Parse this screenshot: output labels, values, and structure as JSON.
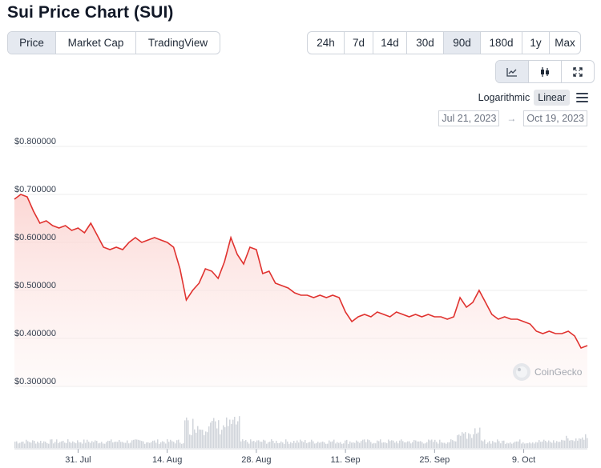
{
  "title": "Sui Price Chart (SUI)",
  "chart_type_tabs": [
    {
      "label": "Price",
      "active": true
    },
    {
      "label": "Market Cap",
      "active": false
    },
    {
      "label": "TradingView",
      "active": false
    }
  ],
  "range_tabs": [
    {
      "label": "24h",
      "active": false
    },
    {
      "label": "7d",
      "active": false
    },
    {
      "label": "14d",
      "active": false
    },
    {
      "label": "30d",
      "active": false
    },
    {
      "label": "90d",
      "active": true
    },
    {
      "label": "180d",
      "active": false
    },
    {
      "label": "1y",
      "active": false
    },
    {
      "label": "Max",
      "active": false
    }
  ],
  "view_buttons": [
    {
      "icon": "line-chart-icon",
      "active": true
    },
    {
      "icon": "candlestick-icon",
      "active": false
    },
    {
      "icon": "fullscreen-icon",
      "active": false
    }
  ],
  "scale": {
    "logarithmic_label": "Logarithmic",
    "linear_label": "Linear",
    "selected": "Linear"
  },
  "date_range": {
    "from": "Jul 21, 2023",
    "to": "Oct 19, 2023"
  },
  "watermark": "CoinGecko",
  "colors": {
    "line": "#e0322f",
    "fill": "#fde3e1",
    "volume": "#d1d5db",
    "grid": "#eeeeee"
  },
  "chart_data": {
    "type": "line",
    "title": "",
    "xlabel": "",
    "ylabel": "",
    "x_start": "Jul 21, 2023",
    "x_end": "Oct 19, 2023",
    "ylim": [
      0.3,
      0.8
    ],
    "y_ticks": [
      0.3,
      0.4,
      0.5,
      0.6,
      0.7,
      0.8
    ],
    "y_tick_labels": [
      "$0.300000",
      "$0.400000",
      "$0.500000",
      "$0.600000",
      "$0.700000",
      "$0.800000"
    ],
    "x_ticks": [
      {
        "label": "31. Jul",
        "date": "2023-07-31"
      },
      {
        "label": "14. Aug",
        "date": "2023-08-14"
      },
      {
        "label": "28. Aug",
        "date": "2023-08-28"
      },
      {
        "label": "11. Sep",
        "date": "2023-09-11"
      },
      {
        "label": "25. Sep",
        "date": "2023-09-25"
      },
      {
        "label": "9. Oct",
        "date": "2023-10-09"
      }
    ],
    "grid": true,
    "series": [
      {
        "points": [
          [
            "2023-07-21",
            0.69
          ],
          [
            "2023-07-22",
            0.7
          ],
          [
            "2023-07-23",
            0.695
          ],
          [
            "2023-07-24",
            0.665
          ],
          [
            "2023-07-25",
            0.64
          ],
          [
            "2023-07-26",
            0.645
          ],
          [
            "2023-07-27",
            0.635
          ],
          [
            "2023-07-28",
            0.63
          ],
          [
            "2023-07-29",
            0.635
          ],
          [
            "2023-07-30",
            0.625
          ],
          [
            "2023-07-31",
            0.63
          ],
          [
            "2023-08-01",
            0.62
          ],
          [
            "2023-08-02",
            0.64
          ],
          [
            "2023-08-03",
            0.615
          ],
          [
            "2023-08-04",
            0.59
          ],
          [
            "2023-08-05",
            0.585
          ],
          [
            "2023-08-06",
            0.59
          ],
          [
            "2023-08-07",
            0.585
          ],
          [
            "2023-08-08",
            0.6
          ],
          [
            "2023-08-09",
            0.61
          ],
          [
            "2023-08-10",
            0.6
          ],
          [
            "2023-08-11",
            0.605
          ],
          [
            "2023-08-12",
            0.61
          ],
          [
            "2023-08-13",
            0.605
          ],
          [
            "2023-08-14",
            0.6
          ],
          [
            "2023-08-15",
            0.59
          ],
          [
            "2023-08-16",
            0.545
          ],
          [
            "2023-08-17",
            0.48
          ],
          [
            "2023-08-18",
            0.5
          ],
          [
            "2023-08-19",
            0.515
          ],
          [
            "2023-08-20",
            0.545
          ],
          [
            "2023-08-21",
            0.54
          ],
          [
            "2023-08-22",
            0.525
          ],
          [
            "2023-08-23",
            0.56
          ],
          [
            "2023-08-24",
            0.61
          ],
          [
            "2023-08-25",
            0.575
          ],
          [
            "2023-08-26",
            0.555
          ],
          [
            "2023-08-27",
            0.59
          ],
          [
            "2023-08-28",
            0.585
          ],
          [
            "2023-08-29",
            0.535
          ],
          [
            "2023-08-30",
            0.54
          ],
          [
            "2023-08-31",
            0.515
          ],
          [
            "2023-09-01",
            0.51
          ],
          [
            "2023-09-02",
            0.505
          ],
          [
            "2023-09-03",
            0.495
          ],
          [
            "2023-09-04",
            0.49
          ],
          [
            "2023-09-05",
            0.49
          ],
          [
            "2023-09-06",
            0.485
          ],
          [
            "2023-09-07",
            0.49
          ],
          [
            "2023-09-08",
            0.485
          ],
          [
            "2023-09-09",
            0.49
          ],
          [
            "2023-09-10",
            0.485
          ],
          [
            "2023-09-11",
            0.455
          ],
          [
            "2023-09-12",
            0.435
          ],
          [
            "2023-09-13",
            0.445
          ],
          [
            "2023-09-14",
            0.45
          ],
          [
            "2023-09-15",
            0.445
          ],
          [
            "2023-09-16",
            0.455
          ],
          [
            "2023-09-17",
            0.45
          ],
          [
            "2023-09-18",
            0.445
          ],
          [
            "2023-09-19",
            0.455
          ],
          [
            "2023-09-20",
            0.45
          ],
          [
            "2023-09-21",
            0.445
          ],
          [
            "2023-09-22",
            0.45
          ],
          [
            "2023-09-23",
            0.445
          ],
          [
            "2023-09-24",
            0.45
          ],
          [
            "2023-09-25",
            0.445
          ],
          [
            "2023-09-26",
            0.445
          ],
          [
            "2023-09-27",
            0.44
          ],
          [
            "2023-09-28",
            0.445
          ],
          [
            "2023-09-29",
            0.485
          ],
          [
            "2023-09-30",
            0.465
          ],
          [
            "2023-10-01",
            0.475
          ],
          [
            "2023-10-02",
            0.5
          ],
          [
            "2023-10-03",
            0.475
          ],
          [
            "2023-10-04",
            0.45
          ],
          [
            "2023-10-05",
            0.44
          ],
          [
            "2023-10-06",
            0.445
          ],
          [
            "2023-10-07",
            0.44
          ],
          [
            "2023-10-08",
            0.44
          ],
          [
            "2023-10-09",
            0.435
          ],
          [
            "2023-10-10",
            0.43
          ],
          [
            "2023-10-11",
            0.415
          ],
          [
            "2023-10-12",
            0.41
          ],
          [
            "2023-10-13",
            0.415
          ],
          [
            "2023-10-14",
            0.41
          ],
          [
            "2023-10-15",
            0.41
          ],
          [
            "2023-10-16",
            0.415
          ],
          [
            "2023-10-17",
            0.405
          ],
          [
            "2023-10-18",
            0.38
          ],
          [
            "2023-10-19",
            0.385
          ]
        ]
      }
    ]
  }
}
